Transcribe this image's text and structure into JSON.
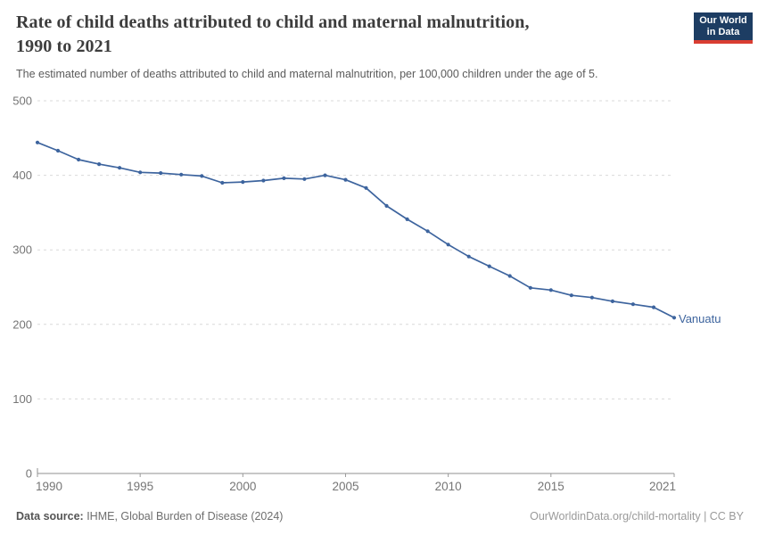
{
  "header": {
    "title_line1": "Rate of child deaths attributed to child and maternal malnutrition,",
    "title_line2": "1990 to 2021",
    "subtitle": "The estimated number of deaths attributed to child and maternal malnutrition, per 100,000 children under the age of 5."
  },
  "logo": {
    "line1": "Our World",
    "line2": "in Data",
    "bg_color": "#1d3d63",
    "bar_color": "#d93d32"
  },
  "chart_data": {
    "type": "line",
    "title": "Rate of child deaths attributed to child and maternal malnutrition, 1990 to 2021",
    "xlabel": "",
    "ylabel": "",
    "x": [
      1990,
      1991,
      1992,
      1993,
      1994,
      1995,
      1996,
      1997,
      1998,
      1999,
      2000,
      2001,
      2002,
      2003,
      2004,
      2005,
      2006,
      2007,
      2008,
      2009,
      2010,
      2011,
      2012,
      2013,
      2014,
      2015,
      2016,
      2017,
      2018,
      2019,
      2020,
      2021
    ],
    "series": [
      {
        "name": "Vanuatu",
        "color": "#3d649e",
        "values": [
          444,
          433,
          421,
          415,
          410,
          404,
          403,
          401,
          399,
          390,
          391,
          393,
          396,
          395,
          400,
          394,
          383,
          359,
          341,
          325,
          307,
          291,
          278,
          265,
          249,
          246,
          239,
          236,
          231,
          227,
          223,
          209
        ]
      }
    ],
    "x_ticks": [
      1990,
      1995,
      2000,
      2005,
      2010,
      2015,
      2021
    ],
    "y_ticks": [
      0,
      100,
      200,
      300,
      400,
      500
    ],
    "xlim": [
      1990,
      2021
    ],
    "ylim": [
      0,
      500
    ],
    "grid": "horizontal-dashed",
    "legend_position": "end-of-line"
  },
  "footer": {
    "source_label": "Data source:",
    "source_text": " IHME, Global Burden of Disease (2024)",
    "right_text": "OurWorldinData.org/child-mortality | CC BY"
  }
}
